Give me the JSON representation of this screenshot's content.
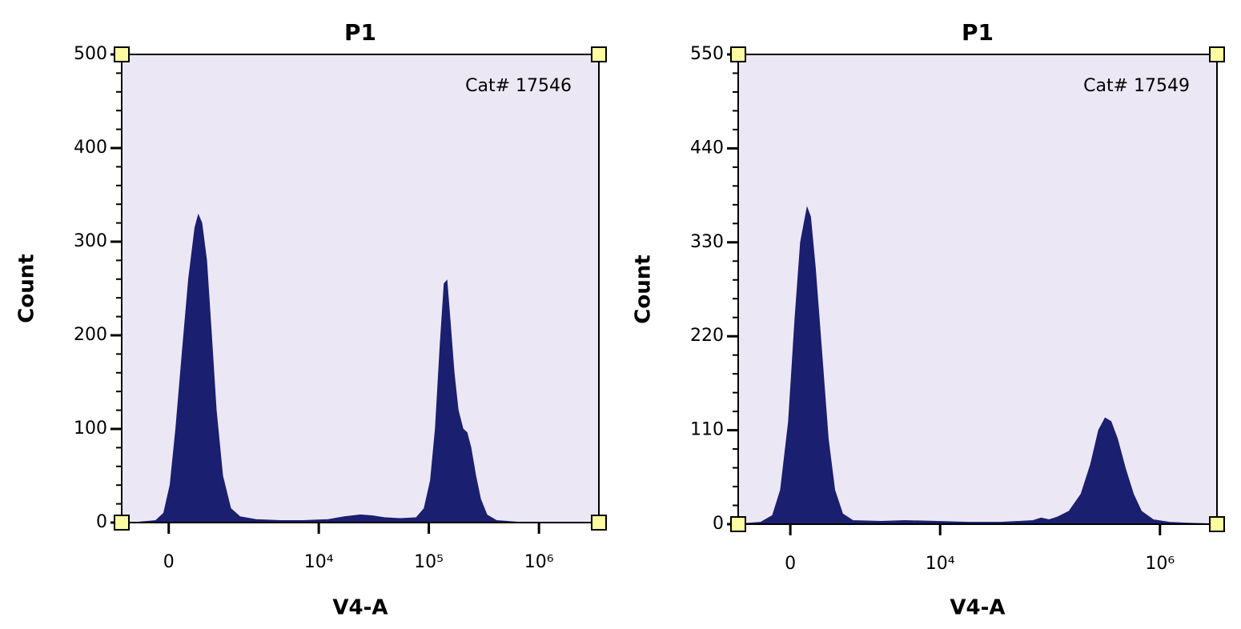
{
  "chart_data": [
    {
      "type": "area",
      "title": "P1",
      "annotation": "Cat# 17546",
      "xlabel": "V4-A",
      "ylabel": "Count",
      "xscale": "biexponential",
      "color": "#1b1f6f",
      "plot_bg": "#ece7f5",
      "xlim": [
        -1000,
        3500000
      ],
      "ylim": [
        0,
        500
      ],
      "xticks": [
        0,
        {
          "value": 10000,
          "label": "10⁴"
        },
        {
          "value": 100000,
          "label": "10⁵"
        },
        {
          "value": 1000000,
          "label": "10⁶"
        }
      ],
      "yticks": [
        0,
        100,
        200,
        300,
        400,
        500
      ],
      "x": [
        -1000,
        -645,
        -236,
        -88,
        29,
        132,
        251,
        375,
        505,
        575,
        646,
        758,
        880,
        1007,
        1194,
        1463,
        1833,
        2627,
        4420,
        7360,
        12180,
        17050,
        23800,
        30600,
        39400,
        55100,
        77000,
        91000,
        104000,
        115100,
        127200,
        138300,
        145400,
        155500,
        169000,
        183800,
        203200,
        221000,
        240100,
        265400,
        294000,
        336000,
        410600,
        678600,
        3500000
      ],
      "values": [
        0,
        0,
        2,
        10,
        40,
        100,
        180,
        260,
        315,
        328,
        320,
        280,
        200,
        120,
        50,
        15,
        6,
        3,
        2,
        2,
        3,
        6,
        8,
        7,
        5,
        4,
        5,
        15,
        45,
        100,
        190,
        255,
        258,
        215,
        160,
        120,
        100,
        96,
        80,
        50,
        25,
        8,
        2,
        0,
        0
      ]
    },
    {
      "type": "area",
      "title": "P1",
      "annotation": "Cat# 17549",
      "xlabel": "V4-A",
      "ylabel": "Count",
      "xscale": "biexponential",
      "color": "#1b1f6f",
      "plot_bg": "#ece7f5",
      "xlim": [
        -1150,
        3300000
      ],
      "ylim": [
        0,
        550
      ],
      "xticks": [
        0,
        {
          "value": 10000,
          "label": "10⁴"
        },
        {
          "value": 1000000,
          "label": "10⁶"
        }
      ],
      "yticks": [
        0,
        110,
        220,
        330,
        440,
        550
      ],
      "x": [
        -1150,
        -576,
        -328,
        -176,
        -29,
        88,
        191,
        312,
        375,
        473,
        611,
        760,
        924,
        1150,
        1496,
        2836,
        4750,
        9350,
        18360,
        35900,
        70200,
        83100,
        98100,
        116100,
        149400,
        192100,
        234800,
        277800,
        317600,
        357100,
        408600,
        483100,
        571400,
        676000,
        869000,
        1215000,
        1701000,
        3300000
      ],
      "values": [
        0,
        2,
        10,
        40,
        120,
        240,
        330,
        370,
        360,
        300,
        200,
        100,
        40,
        12,
        4,
        3,
        4,
        3,
        2,
        2,
        4,
        7,
        5,
        8,
        15,
        35,
        70,
        110,
        124,
        120,
        100,
        65,
        35,
        15,
        5,
        2,
        1,
        0
      ]
    }
  ]
}
